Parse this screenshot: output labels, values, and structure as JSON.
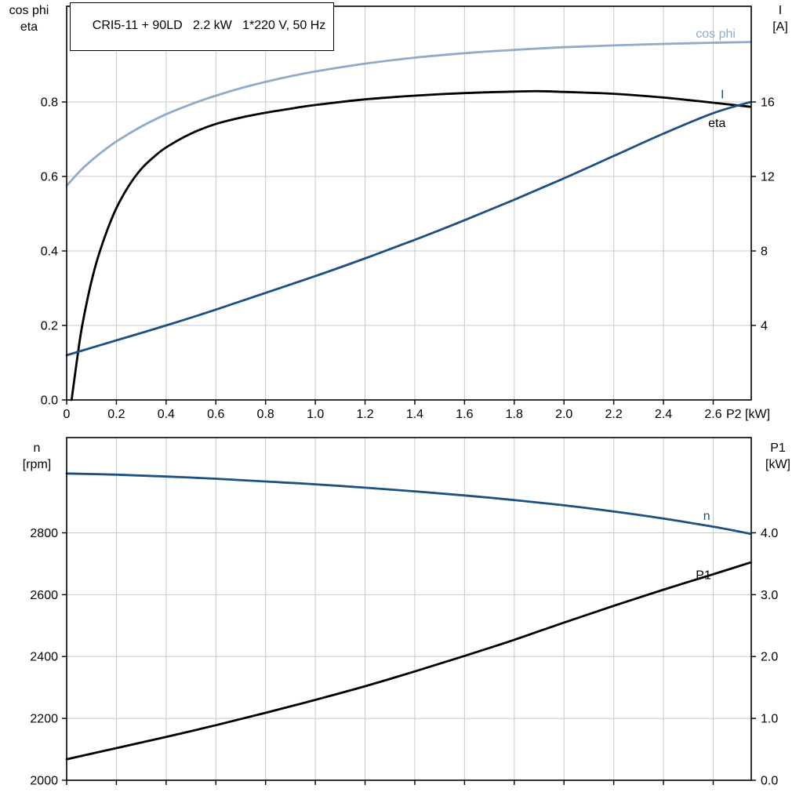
{
  "title_box": {
    "text": "CRI5-11 + 90LD   2.2 kW   1*220 V, 50 Hz"
  },
  "colors": {
    "light_blue": "#8fabc8",
    "dark_blue": "#1b5182",
    "black_curve": "#000000",
    "grid": "#c8c8c8",
    "frame": "#000000",
    "text": "#000000"
  },
  "chart_data": [
    {
      "id": "top",
      "type": "line",
      "x": {
        "label": "P2 [kW]",
        "lim": [
          0,
          2.753
        ],
        "tick_values": [
          0,
          0.2,
          0.4,
          0.6,
          0.8,
          1.0,
          1.2,
          1.4,
          1.6,
          1.8,
          2.0,
          2.2,
          2.4,
          2.6
        ],
        "tick_labels": [
          "0",
          "0.2",
          "0.4",
          "0.6",
          "0.8",
          "1.0",
          "1.2",
          "1.4",
          "1.6",
          "1.8",
          "2.0",
          "2.2",
          "2.4",
          "2.6"
        ],
        "show_tick_labels": true
      },
      "left_axis": {
        "title_lines": [
          "cos phi",
          "eta"
        ],
        "lim": [
          0,
          1.057
        ],
        "tick_values": [
          0,
          0.2,
          0.4,
          0.6,
          0.8
        ],
        "tick_labels": [
          "0.0",
          "0.2",
          "0.4",
          "0.6",
          "0.8"
        ]
      },
      "right_axis": {
        "title_lines": [
          "I",
          "[A]"
        ],
        "lim": [
          0,
          21.14
        ],
        "tick_values": [
          4,
          8,
          12,
          16
        ],
        "tick_labels": [
          "4",
          "8",
          "12",
          "16"
        ]
      },
      "series": [
        {
          "name": "cos phi",
          "axis": "left",
          "color_key": "light_blue",
          "label": {
            "text": "cos phi",
            "x": 2.53,
            "v": 0.973
          },
          "points": [
            [
              0,
              0.575
            ],
            [
              0.05,
              0.612
            ],
            [
              0.1,
              0.643
            ],
            [
              0.15,
              0.67
            ],
            [
              0.2,
              0.694
            ],
            [
              0.3,
              0.734
            ],
            [
              0.4,
              0.767
            ],
            [
              0.5,
              0.794
            ],
            [
              0.6,
              0.817
            ],
            [
              0.7,
              0.837
            ],
            [
              0.8,
              0.854
            ],
            [
              0.9,
              0.869
            ],
            [
              1.0,
              0.882
            ],
            [
              1.2,
              0.903
            ],
            [
              1.4,
              0.919
            ],
            [
              1.6,
              0.931
            ],
            [
              1.8,
              0.94
            ],
            [
              2.0,
              0.947
            ],
            [
              2.2,
              0.952
            ],
            [
              2.4,
              0.956
            ],
            [
              2.6,
              0.959
            ],
            [
              2.75,
              0.961
            ]
          ]
        },
        {
          "name": "eta",
          "axis": "left",
          "color_key": "black_curve",
          "label": {
            "text": "eta",
            "x": 2.58,
            "v": 0.733
          },
          "points": [
            [
              0.02,
              0.0
            ],
            [
              0.04,
              0.1
            ],
            [
              0.06,
              0.19
            ],
            [
              0.09,
              0.29
            ],
            [
              0.12,
              0.37
            ],
            [
              0.16,
              0.45
            ],
            [
              0.2,
              0.515
            ],
            [
              0.25,
              0.575
            ],
            [
              0.3,
              0.62
            ],
            [
              0.35,
              0.652
            ],
            [
              0.4,
              0.678
            ],
            [
              0.5,
              0.715
            ],
            [
              0.6,
              0.741
            ],
            [
              0.7,
              0.758
            ],
            [
              0.8,
              0.771
            ],
            [
              0.9,
              0.782
            ],
            [
              1.0,
              0.792
            ],
            [
              1.2,
              0.807
            ],
            [
              1.4,
              0.817
            ],
            [
              1.6,
              0.824
            ],
            [
              1.8,
              0.828
            ],
            [
              1.9,
              0.829
            ],
            [
              2.0,
              0.827
            ],
            [
              2.2,
              0.822
            ],
            [
              2.4,
              0.812
            ],
            [
              2.6,
              0.798
            ],
            [
              2.75,
              0.787
            ]
          ]
        },
        {
          "name": "I",
          "axis": "right",
          "color_key": "dark_blue",
          "label": {
            "text": "I",
            "x": 2.63,
            "v": 16.2
          },
          "points": [
            [
              0,
              2.4
            ],
            [
              0.2,
              3.2
            ],
            [
              0.4,
              4.0
            ],
            [
              0.6,
              4.85
            ],
            [
              0.8,
              5.75
            ],
            [
              1.0,
              6.65
            ],
            [
              1.2,
              7.6
            ],
            [
              1.4,
              8.6
            ],
            [
              1.6,
              9.65
            ],
            [
              1.8,
              10.75
            ],
            [
              2.0,
              11.9
            ],
            [
              2.2,
              13.1
            ],
            [
              2.4,
              14.3
            ],
            [
              2.6,
              15.4
            ],
            [
              2.75,
              16.0
            ]
          ]
        }
      ]
    },
    {
      "id": "bottom",
      "type": "line",
      "x": {
        "label": "",
        "lim": [
          0,
          2.753
        ],
        "tick_values": [
          0,
          0.2,
          0.4,
          0.6,
          0.8,
          1.0,
          1.2,
          1.4,
          1.6,
          1.8,
          2.0,
          2.2,
          2.4,
          2.6
        ],
        "tick_labels": [],
        "show_tick_labels": false
      },
      "left_axis": {
        "title_lines": [
          "n",
          "[rpm]"
        ],
        "lim": [
          2000,
          3108
        ],
        "tick_values": [
          2000,
          2200,
          2400,
          2600,
          2800
        ],
        "tick_labels": [
          "2000",
          "2200",
          "2400",
          "2600",
          "2800"
        ]
      },
      "right_axis": {
        "title_lines": [
          "P1",
          "[kW]"
        ],
        "lim": [
          0,
          5.54
        ],
        "tick_values": [
          0,
          1,
          2,
          3,
          4
        ],
        "tick_labels": [
          "0.0",
          "1.0",
          "2.0",
          "3.0",
          "4.0"
        ]
      },
      "series": [
        {
          "name": "n",
          "axis": "left",
          "color_key": "dark_blue",
          "label": {
            "text": "n",
            "x": 2.56,
            "v": 2842
          },
          "points": [
            [
              0,
              2992
            ],
            [
              0.2,
              2988
            ],
            [
              0.4,
              2982
            ],
            [
              0.6,
              2975
            ],
            [
              0.8,
              2966
            ],
            [
              1.0,
              2957
            ],
            [
              1.2,
              2946
            ],
            [
              1.4,
              2934
            ],
            [
              1.6,
              2921
            ],
            [
              1.8,
              2906
            ],
            [
              2.0,
              2889
            ],
            [
              2.2,
              2869
            ],
            [
              2.4,
              2846
            ],
            [
              2.6,
              2820
            ],
            [
              2.75,
              2797
            ]
          ]
        },
        {
          "name": "P1",
          "axis": "right",
          "color_key": "black_curve",
          "label": {
            "text": "P1",
            "x": 2.53,
            "v": 3.25
          },
          "points": [
            [
              0,
              0.34
            ],
            [
              0.2,
              0.52
            ],
            [
              0.4,
              0.7
            ],
            [
              0.6,
              0.89
            ],
            [
              0.8,
              1.09
            ],
            [
              1.0,
              1.3
            ],
            [
              1.2,
              1.52
            ],
            [
              1.4,
              1.76
            ],
            [
              1.6,
              2.01
            ],
            [
              1.8,
              2.27
            ],
            [
              2.0,
              2.55
            ],
            [
              2.2,
              2.82
            ],
            [
              2.4,
              3.08
            ],
            [
              2.6,
              3.33
            ],
            [
              2.75,
              3.52
            ]
          ]
        }
      ]
    }
  ]
}
